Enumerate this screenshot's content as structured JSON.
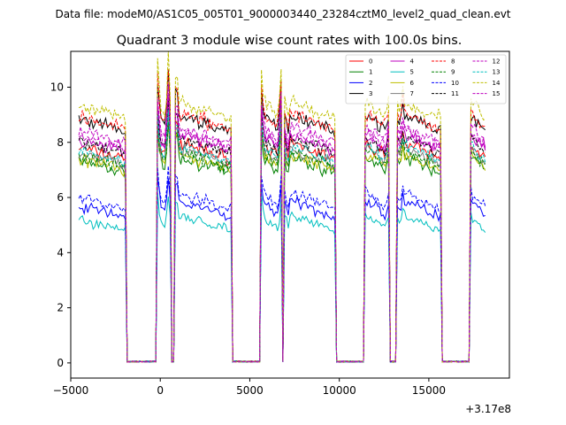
{
  "chart_data": {
    "type": "line",
    "suptitle": "Data file: modeM0/AS1C05_005T01_9000003440_23284cztM0_level2_quad_clean.evt",
    "title": "Quadrant 3 module wise count rates with 100.0s bins.",
    "xlabel": "",
    "ylabel": "",
    "x_offset_label": "+3.17e8",
    "xlim": [
      -5000,
      19500
    ],
    "ylim": [
      -0.55,
      11.3
    ],
    "xticks": [
      -5000,
      0,
      5000,
      10000,
      15000
    ],
    "xtick_labels": [
      "−5000",
      "0",
      "5000",
      "10000",
      "15000"
    ],
    "yticks": [
      0,
      2,
      4,
      6,
      8,
      10
    ],
    "ytick_labels": [
      "0",
      "2",
      "4",
      "6",
      "8",
      "10"
    ],
    "bin_seconds": 100,
    "segments": [
      {
        "x0": -4550,
        "x1": -1900
      },
      {
        "x0": -150,
        "x1": 450
      },
      {
        "x0": 450,
        "x1": 550
      },
      {
        "x0": 800,
        "x1": 3950
      },
      {
        "x0": 5650,
        "x1": 6750
      },
      {
        "x0": 6950,
        "x1": 7150
      },
      {
        "x0": 7150,
        "x1": 9800
      },
      {
        "x0": 11450,
        "x1": 12750
      },
      {
        "x0": 13200,
        "x1": 13500
      },
      {
        "x0": 13500,
        "x1": 15650
      },
      {
        "x0": 17350,
        "x1": 18200
      }
    ],
    "series": [
      {
        "name": "0",
        "color": "#ff0000",
        "dash": false,
        "level": 7.6
      },
      {
        "name": "1",
        "color": "#008000",
        "dash": false,
        "level": 7.1
      },
      {
        "name": "2",
        "color": "#0000ff",
        "dash": false,
        "level": 5.5
      },
      {
        "name": "3",
        "color": "#000000",
        "dash": false,
        "level": 8.6
      },
      {
        "name": "4",
        "color": "#bf00bf",
        "dash": false,
        "level": 7.9
      },
      {
        "name": "5",
        "color": "#00bfbf",
        "dash": false,
        "level": 5.0
      },
      {
        "name": "6",
        "color": "#bfbf00",
        "dash": false,
        "level": 7.2
      },
      {
        "name": "7",
        "color": "#808080",
        "dash": false,
        "level": 7.4
      },
      {
        "name": "8",
        "color": "#ff0000",
        "dash": true,
        "level": 8.7
      },
      {
        "name": "9",
        "color": "#008000",
        "dash": true,
        "level": 7.3
      },
      {
        "name": "10",
        "color": "#0000ff",
        "dash": true,
        "level": 5.8
      },
      {
        "name": "11",
        "color": "#000000",
        "dash": true,
        "level": 7.8
      },
      {
        "name": "12",
        "color": "#bf00bf",
        "dash": true,
        "level": 8.0
      },
      {
        "name": "13",
        "color": "#00bfbf",
        "dash": true,
        "level": 7.5
      },
      {
        "name": "14",
        "color": "#bfbf00",
        "dash": true,
        "level": 9.1
      },
      {
        "name": "15",
        "color": "#bf00bf",
        "dash": true,
        "level": 8.2
      }
    ],
    "legend_position": "top-right",
    "legend_columns": 4
  }
}
